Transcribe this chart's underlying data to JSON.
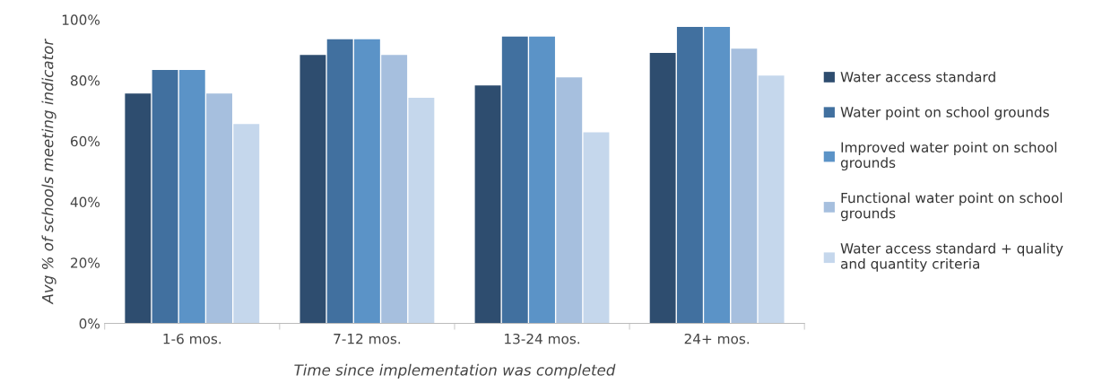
{
  "chart_data": {
    "type": "bar",
    "xlabel": "Time since implementation was completed",
    "ylabel": "Avg % of schools meeting indicator",
    "categories": [
      "1-6 mos.",
      "7-12 mos.",
      "13-24 mos.",
      "24+ mos."
    ],
    "series": [
      {
        "name": "Water access standard",
        "color": "#2e4d6f",
        "values": [
          75.7,
          88.4,
          78.3,
          89.0
        ]
      },
      {
        "name": "Water point on school grounds",
        "color": "#41709f",
        "values": [
          83.4,
          93.5,
          94.4,
          97.6
        ]
      },
      {
        "name": "Improved water point on school grounds",
        "color": "#5b93c7",
        "values": [
          83.4,
          93.5,
          94.4,
          97.6
        ]
      },
      {
        "name": "Functional water point on school grounds",
        "color": "#a6bfde",
        "values": [
          75.7,
          88.4,
          81.0,
          90.4
        ]
      },
      {
        "name": "Water access standard + quality and quantity criteria",
        "color": "#c5d7ec",
        "values": [
          65.6,
          74.3,
          62.9,
          81.6
        ]
      }
    ],
    "ylim": [
      0,
      100
    ],
    "yticks": [
      {
        "value": 0,
        "label": "0%"
      },
      {
        "value": 20,
        "label": "20%"
      },
      {
        "value": 40,
        "label": "40%"
      },
      {
        "value": 60,
        "label": "60%"
      },
      {
        "value": 80,
        "label": "80%"
      },
      {
        "value": 100,
        "label": "100%"
      }
    ],
    "grid": false,
    "legend": "right"
  }
}
